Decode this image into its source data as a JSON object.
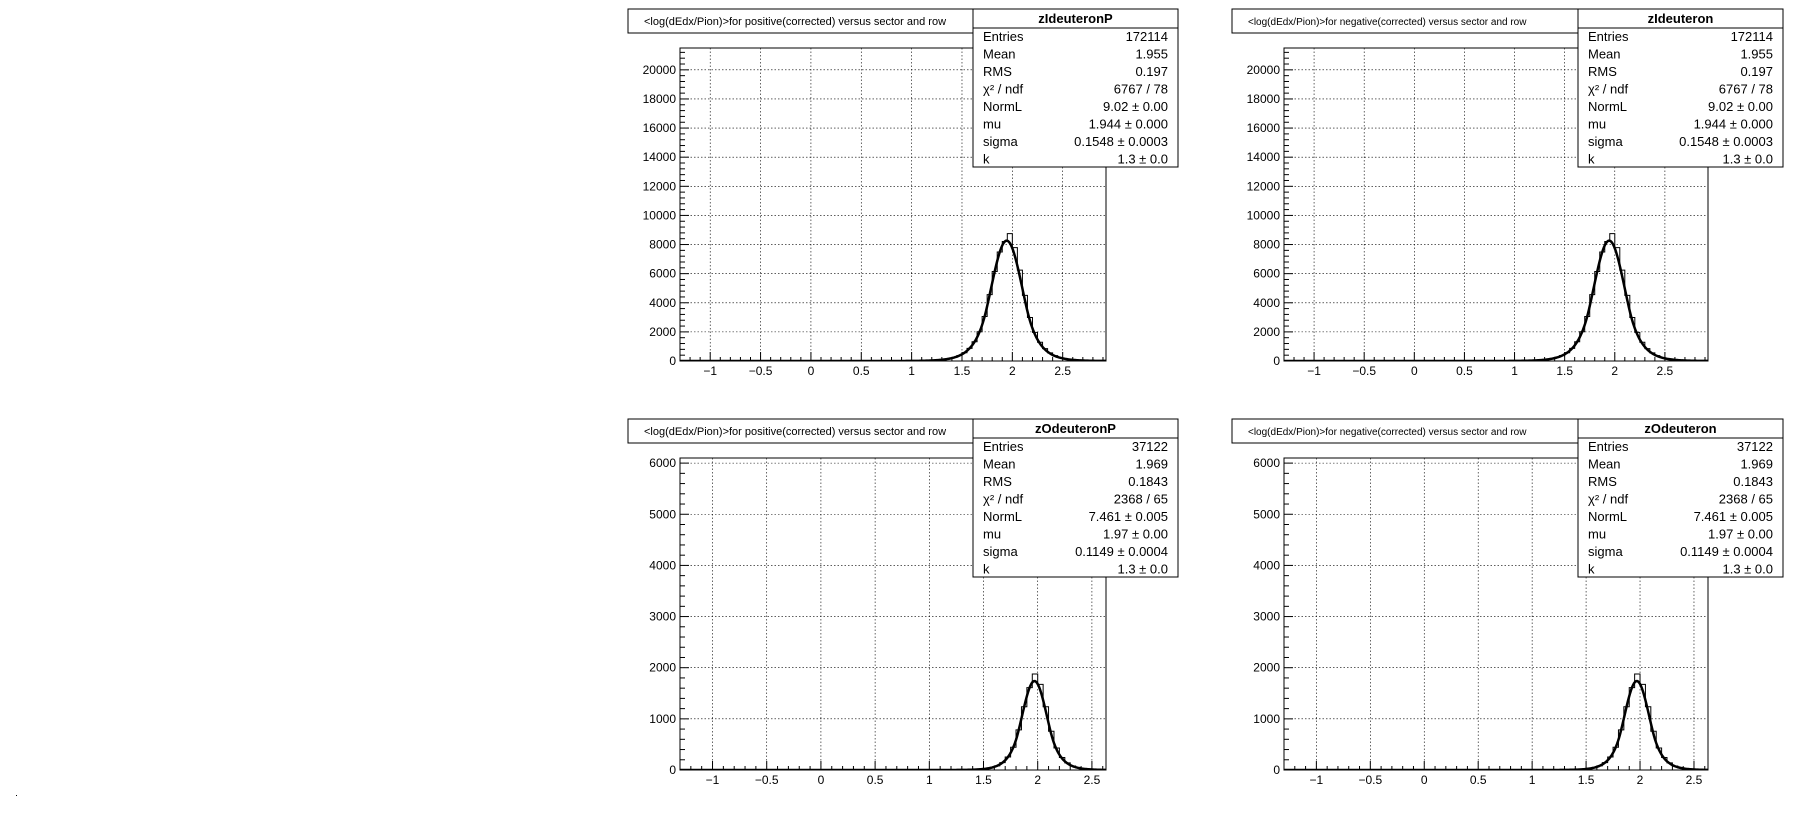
{
  "chart_data": [
    {
      "type": "histogram",
      "title": "<log(dEdx/Pion)>for positive(corrected) versus sector and row",
      "xlabel": "",
      "ylabel": "",
      "xlim": [
        -1.3,
        2.93
      ],
      "ylim": [
        0,
        21500
      ],
      "grid": true,
      "xticks": [
        "-1",
        "-0.5",
        "0",
        "0.5",
        "1",
        "1.5",
        "2",
        "2.5"
      ],
      "yticks": [
        "0",
        "2000",
        "4000",
        "6000",
        "8000",
        "10000",
        "12000",
        "14000",
        "16000",
        "18000",
        "20000"
      ],
      "fit": {
        "norm": 9.02,
        "mu": 1.944,
        "sigma": 0.1548,
        "k": 1.3
      },
      "stats": {
        "name": "zIdeuteronP",
        "rows": [
          {
            "label": "Entries",
            "value": "172114"
          },
          {
            "label": "Mean",
            "value": "1.955"
          },
          {
            "label": "RMS",
            "value": "0.197"
          },
          {
            "label": "χ² / ndf",
            "value": "6767 / 78"
          },
          {
            "label": "NormL",
            "value": "9.02 ± 0.00"
          },
          {
            "label": "mu",
            "value": "1.944 ± 0.000"
          },
          {
            "label": "sigma",
            "value": "0.1548 ± 0.0003"
          },
          {
            "label": "k",
            "value": "1.3 ± 0.0"
          }
        ]
      }
    },
    {
      "type": "histogram",
      "title": "<log(dEdx/Pion)>for negative(corrected) versus sector and row",
      "xlabel": "",
      "ylabel": "",
      "xlim": [
        -1.3,
        2.93
      ],
      "ylim": [
        0,
        21500
      ],
      "grid": true,
      "xticks": [
        "-1",
        "-0.5",
        "0",
        "0.5",
        "1",
        "1.5",
        "2",
        "2.5"
      ],
      "yticks": [
        "0",
        "2000",
        "4000",
        "6000",
        "8000",
        "10000",
        "12000",
        "14000",
        "16000",
        "18000",
        "20000"
      ],
      "fit": {
        "norm": 9.02,
        "mu": 1.944,
        "sigma": 0.1548,
        "k": 1.3
      },
      "stats": {
        "name": "zIdeuteron",
        "rows": [
          {
            "label": "Entries",
            "value": "172114"
          },
          {
            "label": "Mean",
            "value": "1.955"
          },
          {
            "label": "RMS",
            "value": "0.197"
          },
          {
            "label": "χ² / ndf",
            "value": "6767 / 78"
          },
          {
            "label": "NormL",
            "value": "9.02 ± 0.00"
          },
          {
            "label": "mu",
            "value": "1.944 ± 0.000"
          },
          {
            "label": "sigma",
            "value": "0.1548 ± 0.0003"
          },
          {
            "label": "k",
            "value": "1.3 ± 0.0"
          }
        ]
      }
    },
    {
      "type": "histogram",
      "title": "<log(dEdx/Pion)>for positive(corrected) versus sector and row",
      "xlabel": "",
      "ylabel": "",
      "xlim": [
        -1.3,
        2.63
      ],
      "ylim": [
        0,
        6100
      ],
      "grid": true,
      "xticks": [
        "-1",
        "-0.5",
        "0",
        "0.5",
        "1",
        "1.5",
        "2",
        "2.5"
      ],
      "yticks": [
        "0",
        "1000",
        "2000",
        "3000",
        "4000",
        "5000",
        "6000"
      ],
      "fit": {
        "norm": 7.461,
        "mu": 1.97,
        "sigma": 0.1149,
        "k": 1.3
      },
      "stats": {
        "name": "zOdeuteronP",
        "rows": [
          {
            "label": "Entries",
            "value": "37122"
          },
          {
            "label": "Mean",
            "value": "1.969"
          },
          {
            "label": "RMS",
            "value": "0.1843"
          },
          {
            "label": "χ² / ndf",
            "value": "2368 / 65"
          },
          {
            "label": "NormL",
            "value": "7.461 ± 0.005"
          },
          {
            "label": "mu",
            "value": "1.97 ± 0.00"
          },
          {
            "label": "sigma",
            "value": "0.1149 ± 0.0004"
          },
          {
            "label": "k",
            "value": "1.3 ± 0.0"
          }
        ]
      }
    },
    {
      "type": "histogram",
      "title": "<log(dEdx/Pion)>for negative(corrected) versus sector and row",
      "xlabel": "",
      "ylabel": "",
      "xlim": [
        -1.3,
        2.63
      ],
      "ylim": [
        0,
        6100
      ],
      "grid": true,
      "xticks": [
        "-1",
        "-0.5",
        "0",
        "0.5",
        "1",
        "1.5",
        "2",
        "2.5"
      ],
      "yticks": [
        "0",
        "1000",
        "2000",
        "3000",
        "4000",
        "5000",
        "6000"
      ],
      "fit": {
        "norm": 7.461,
        "mu": 1.97,
        "sigma": 0.1149,
        "k": 1.3
      },
      "stats": {
        "name": "zOdeuteron",
        "rows": [
          {
            "label": "Entries",
            "value": "37122"
          },
          {
            "label": "Mean",
            "value": "1.969"
          },
          {
            "label": "RMS",
            "value": "0.1843"
          },
          {
            "label": "χ² / ndf",
            "value": "2368 / 65"
          },
          {
            "label": "NormL",
            "value": "7.461 ± 0.005"
          },
          {
            "label": "mu",
            "value": "1.97 ± 0.00"
          },
          {
            "label": "sigma",
            "value": "0.1149 ± 0.0004"
          },
          {
            "label": "k",
            "value": "1.3 ± 0.0"
          }
        ]
      }
    }
  ]
}
